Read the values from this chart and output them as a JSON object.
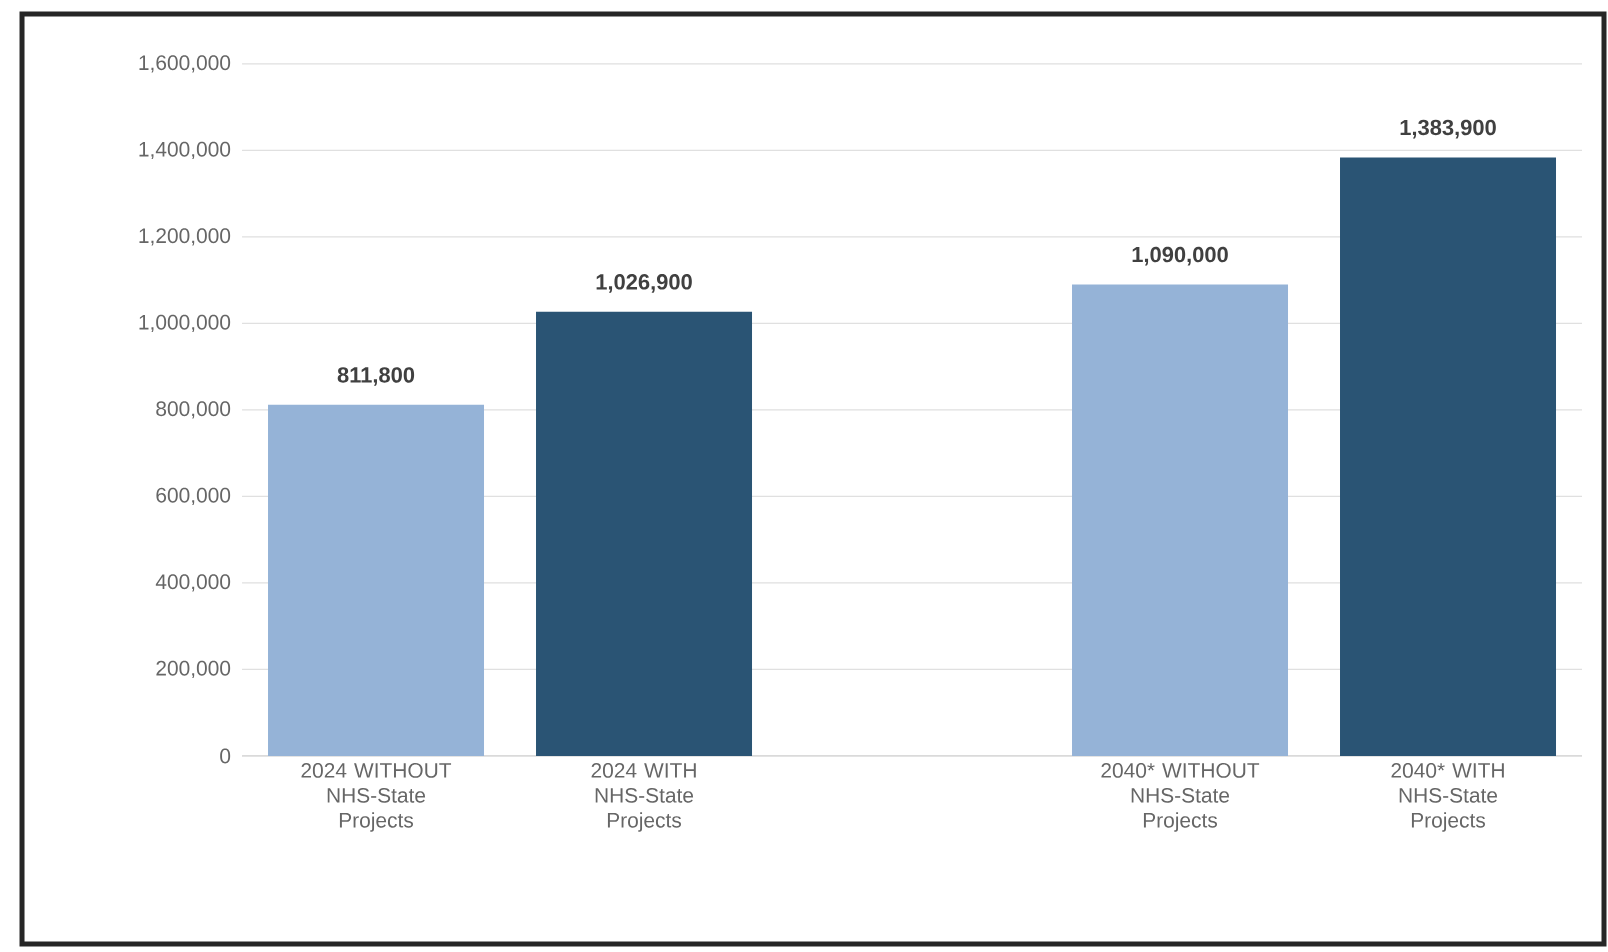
{
  "chart_data": {
    "type": "bar",
    "categories": [
      "2024 WITHOUT NHS-State Projects",
      "2024 WITH NHS-State Projects",
      null,
      "2040* WITHOUT NHS-State Projects",
      "2040* WITH NHS-State Projects"
    ],
    "values": [
      811800,
      1026900,
      null,
      1090000,
      1383900
    ],
    "colors": [
      "#95b3d7",
      "#2a5474",
      "#95b3d7",
      "#95b3d7",
      "#2a5474"
    ],
    "value_labels": [
      "811,800",
      "1,026,900",
      null,
      "1,090,000",
      "1,383,900"
    ],
    "ylim": [
      0,
      1600000
    ],
    "yticks": [
      0,
      {
        "value": 200000,
        "label": "200,000"
      },
      {
        "value": 400000,
        "label": "400,000"
      },
      {
        "value": 600000,
        "label": "600,000"
      },
      {
        "value": 800000,
        "label": "800,000"
      },
      {
        "value": 1000000,
        "label": "1,000,000"
      },
      {
        "value": 1200000,
        "label": "1,200,000"
      },
      {
        "value": 1400000,
        "label": "1,400,000"
      },
      {
        "value": 1600000,
        "label": "1,600,000"
      }
    ],
    "grid": "y"
  }
}
